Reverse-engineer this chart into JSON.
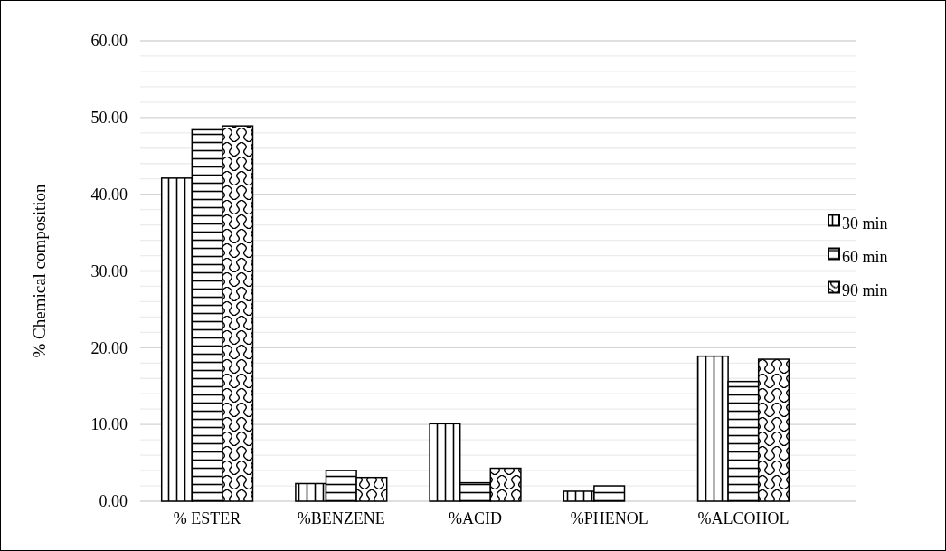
{
  "chart_data": {
    "type": "bar",
    "ylabel": "% Chemical composition",
    "categories": [
      "% ESTER",
      "%BENZENE",
      "%ACID",
      "%PHENOL",
      "%ALCOHOL"
    ],
    "series": [
      {
        "name": "30 min",
        "color": "#000000",
        "values": [
          42.1,
          2.3,
          10.1,
          1.3,
          18.9
        ]
      },
      {
        "name": "60 min",
        "color": "#000000",
        "values": [
          48.4,
          4.0,
          2.4,
          2.0,
          15.6
        ]
      },
      {
        "name": "90 min",
        "color": "#000000",
        "values": [
          48.9,
          3.1,
          4.3,
          0,
          18.5
        ]
      }
    ],
    "ylim": [
      0,
      60
    ],
    "yticks": [
      {
        "value": 0,
        "label": "0.00"
      },
      {
        "value": 2,
        "label": null
      },
      {
        "value": 4,
        "label": null
      },
      {
        "value": 6,
        "label": null
      },
      {
        "value": 8,
        "label": null
      },
      {
        "value": 10,
        "label": "10.00"
      },
      {
        "value": 12,
        "label": null
      },
      {
        "value": 14,
        "label": null
      },
      {
        "value": 16,
        "label": null
      },
      {
        "value": 18,
        "label": null
      },
      {
        "value": 20,
        "label": "20.00"
      },
      {
        "value": 22,
        "label": null
      },
      {
        "value": 24,
        "label": null
      },
      {
        "value": 26,
        "label": null
      },
      {
        "value": 28,
        "label": null
      },
      {
        "value": 30,
        "label": "30.00"
      },
      {
        "value": 32,
        "label": null
      },
      {
        "value": 34,
        "label": null
      },
      {
        "value": 36,
        "label": null
      },
      {
        "value": 38,
        "label": null
      },
      {
        "value": 40,
        "label": "40.00"
      },
      {
        "value": 42,
        "label": null
      },
      {
        "value": 44,
        "label": null
      },
      {
        "value": 46,
        "label": null
      },
      {
        "value": 48,
        "label": null
      },
      {
        "value": 50,
        "label": "50.00"
      },
      {
        "value": 52,
        "label": null
      },
      {
        "value": 54,
        "label": null
      },
      {
        "value": 56,
        "label": null
      },
      {
        "value": 58,
        "label": null
      },
      {
        "value": 60,
        "label": "60.00"
      }
    ],
    "grid": "y",
    "legend": "right"
  }
}
